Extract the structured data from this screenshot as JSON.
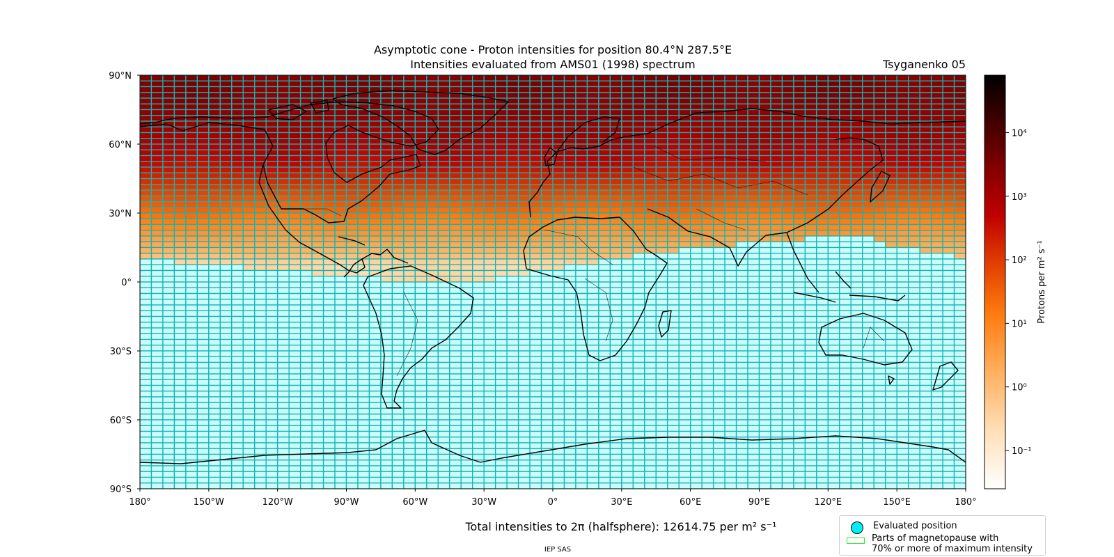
{
  "chart_data": {
    "type": "heatmap",
    "title": "Asymptotic cone - Proton intensities for position 80.4°N 287.5°E",
    "subtitle": "Intensities evaluated from AMS01 (1998) spectrum",
    "model_label": "Tsyganenko 05",
    "x_ticks": [
      "180°",
      "150°W",
      "120°W",
      "90°W",
      "60°W",
      "30°W",
      "0°",
      "30°E",
      "60°E",
      "90°E",
      "120°E",
      "150°E",
      "180°"
    ],
    "y_ticks": [
      "90°N",
      "60°N",
      "30°N",
      "0°",
      "30°S",
      "60°S",
      "90°S"
    ],
    "xlim": [
      -180,
      180
    ],
    "ylim": [
      -90,
      90
    ],
    "grid_cell_deg": [
      5,
      2.5
    ],
    "colorbar": {
      "label": "Protons per m² s⁻¹",
      "scale": "log",
      "range": [
        0.025,
        80000
      ],
      "tick_values": [
        0.1,
        1,
        10,
        100,
        1000,
        10000
      ],
      "tick_labels": [
        "10⁻¹",
        "10⁰",
        "10¹",
        "10²",
        "10³",
        "10⁴"
      ]
    },
    "intensity_profile_by_latitude": [
      {
        "lat": 87.5,
        "value": 3000
      },
      {
        "lat": 80,
        "value": 2200
      },
      {
        "lat": 70,
        "value": 1500
      },
      {
        "lat": 60,
        "value": 800
      },
      {
        "lat": 50,
        "value": 350
      },
      {
        "lat": 40,
        "value": 80
      },
      {
        "lat": 30,
        "value": 20
      },
      {
        "lat": 20,
        "value": 4
      },
      {
        "lat": 12,
        "value": 1.2
      },
      {
        "lat": 8,
        "value": 0.3
      }
    ],
    "cutoff_latitude_by_longitude": [
      {
        "lon": -180,
        "lat": 10
      },
      {
        "lon": -150,
        "lat": 7.5
      },
      {
        "lon": -90,
        "lat": 2.5
      },
      {
        "lon": -60,
        "lat": 0
      },
      {
        "lon": -30,
        "lat": 0
      },
      {
        "lon": 0,
        "lat": 5
      },
      {
        "lon": 45,
        "lat": 12.5
      },
      {
        "lon": 90,
        "lat": 17.5
      },
      {
        "lon": 135,
        "lat": 20
      },
      {
        "lon": 150,
        "lat": 15
      },
      {
        "lon": 180,
        "lat": 10
      }
    ],
    "below_cutoff_fill": "#ccfbfb",
    "grid_line_color": "#10b6b6",
    "footer_total": "Total intensities to 2π (halfsphere): 12614.75 per m² s⁻¹"
  },
  "legend": {
    "evaluated_position": "Evaluated position",
    "magnetopause_line1": "Parts of magnetopause with",
    "magnetopause_line2": "70% or more of maximum intensity"
  },
  "credit": "IEP SAS",
  "colors": {
    "evaluated_position_fill": "#00f0f8",
    "magnetopause_edge": "#22ee22",
    "coast": "#000000"
  }
}
